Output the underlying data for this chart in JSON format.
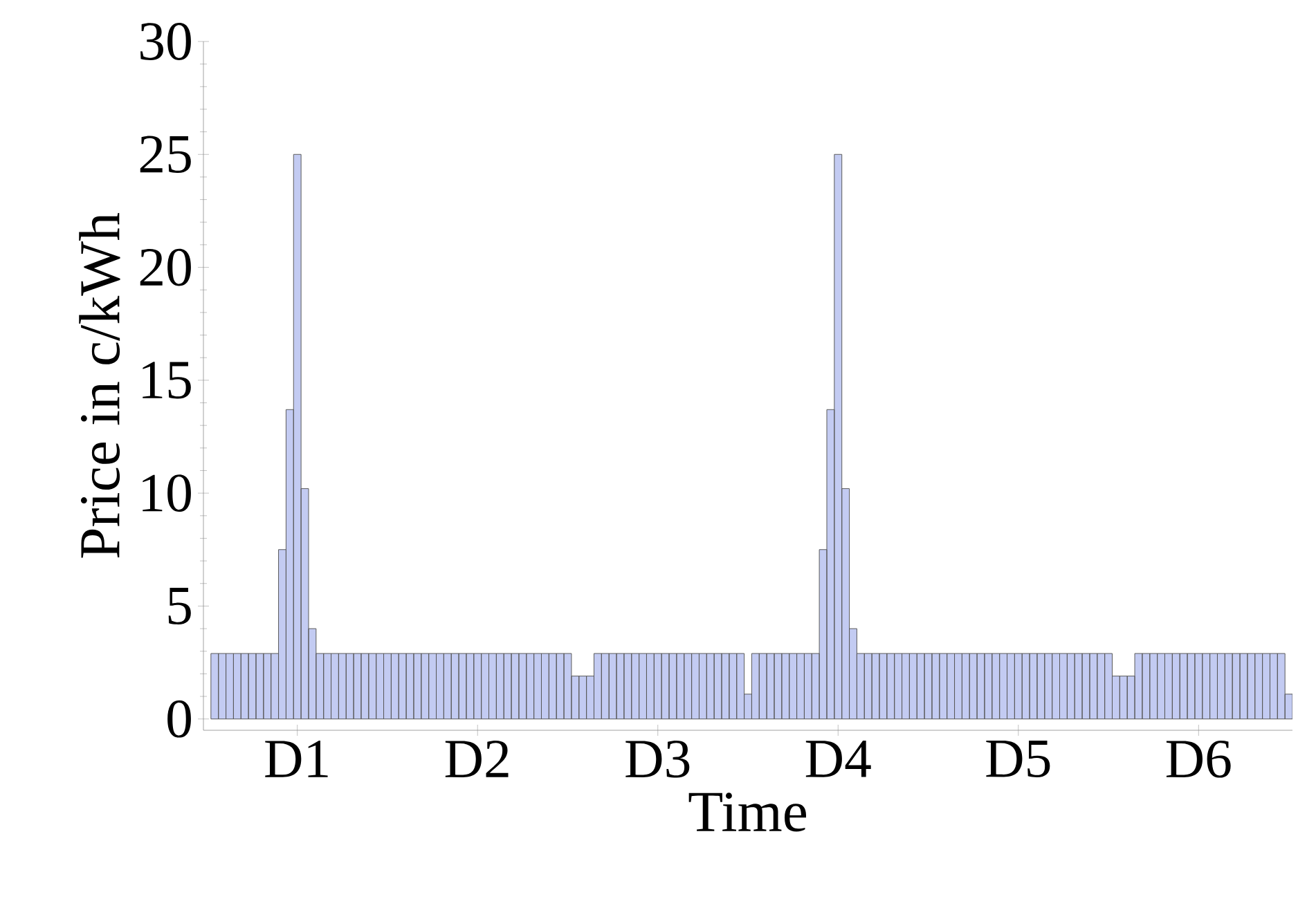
{
  "chart_data": {
    "type": "bar",
    "xlabel": "Time",
    "ylabel": "Price in c/kWh",
    "color": "#c3cbf2",
    "categories": [
      null,
      null,
      null,
      null,
      null,
      null,
      null,
      null,
      null,
      null,
      null,
      "D1",
      null,
      null,
      null,
      null,
      null,
      null,
      null,
      null,
      null,
      null,
      null,
      null,
      null,
      null,
      null,
      null,
      null,
      null,
      null,
      null,
      null,
      null,
      null,
      "D2",
      null,
      null,
      null,
      null,
      null,
      null,
      null,
      null,
      null,
      null,
      null,
      null,
      null,
      null,
      null,
      null,
      null,
      null,
      null,
      null,
      null,
      null,
      null,
      "D3",
      null,
      null,
      null,
      null,
      null,
      null,
      null,
      null,
      null,
      null,
      null,
      null,
      null,
      null,
      null,
      null,
      null,
      null,
      null,
      null,
      null,
      null,
      null,
      "D4",
      null,
      null,
      null,
      null,
      null,
      null,
      null,
      null,
      null,
      null,
      null,
      null,
      null,
      null,
      null,
      null,
      null,
      null,
      null,
      null,
      null,
      null,
      null,
      "D5",
      null,
      null,
      null,
      null,
      null,
      null,
      null,
      null,
      null,
      null,
      null,
      null,
      null,
      null,
      null,
      null,
      null,
      null,
      null,
      null,
      null,
      null,
      null,
      "D6",
      null,
      null,
      null,
      null,
      null,
      null,
      null,
      null,
      null,
      null,
      null,
      null
    ],
    "values": [
      2.9,
      2.9,
      2.9,
      2.9,
      2.9,
      2.9,
      2.9,
      2.9,
      2.9,
      7.5,
      13.7,
      25,
      10.2,
      4.0,
      2.9,
      2.9,
      2.9,
      2.9,
      2.9,
      2.9,
      2.9,
      2.9,
      2.9,
      2.9,
      2.9,
      2.9,
      2.9,
      2.9,
      2.9,
      2.9,
      2.9,
      2.9,
      2.9,
      2.9,
      2.9,
      2.9,
      2.9,
      2.9,
      2.9,
      2.9,
      2.9,
      2.9,
      2.9,
      2.9,
      2.9,
      2.9,
      2.9,
      2.9,
      1.9,
      1.9,
      1.9,
      2.9,
      2.9,
      2.9,
      2.9,
      2.9,
      2.9,
      2.9,
      2.9,
      2.9,
      2.9,
      2.9,
      2.9,
      2.9,
      2.9,
      2.9,
      2.9,
      2.9,
      2.9,
      2.9,
      2.9,
      1.1,
      2.9,
      2.9,
      2.9,
      2.9,
      2.9,
      2.9,
      2.9,
      2.9,
      2.9,
      7.5,
      13.7,
      25,
      10.2,
      4.0,
      2.9,
      2.9,
      2.9,
      2.9,
      2.9,
      2.9,
      2.9,
      2.9,
      2.9,
      2.9,
      2.9,
      2.9,
      2.9,
      2.9,
      2.9,
      2.9,
      2.9,
      2.9,
      2.9,
      2.9,
      2.9,
      2.9,
      2.9,
      2.9,
      2.9,
      2.9,
      2.9,
      2.9,
      2.9,
      2.9,
      2.9,
      2.9,
      2.9,
      2.9,
      1.9,
      1.9,
      1.9,
      2.9,
      2.9,
      2.9,
      2.9,
      2.9,
      2.9,
      2.9,
      2.9,
      2.9,
      2.9,
      2.9,
      2.9,
      2.9,
      2.9,
      2.9,
      2.9,
      2.9,
      2.9,
      2.9,
      2.9,
      1.1
    ],
    "ylim": [
      -0.5,
      30
    ],
    "yticks": [
      0,
      5,
      10,
      15,
      20,
      25,
      30
    ]
  }
}
